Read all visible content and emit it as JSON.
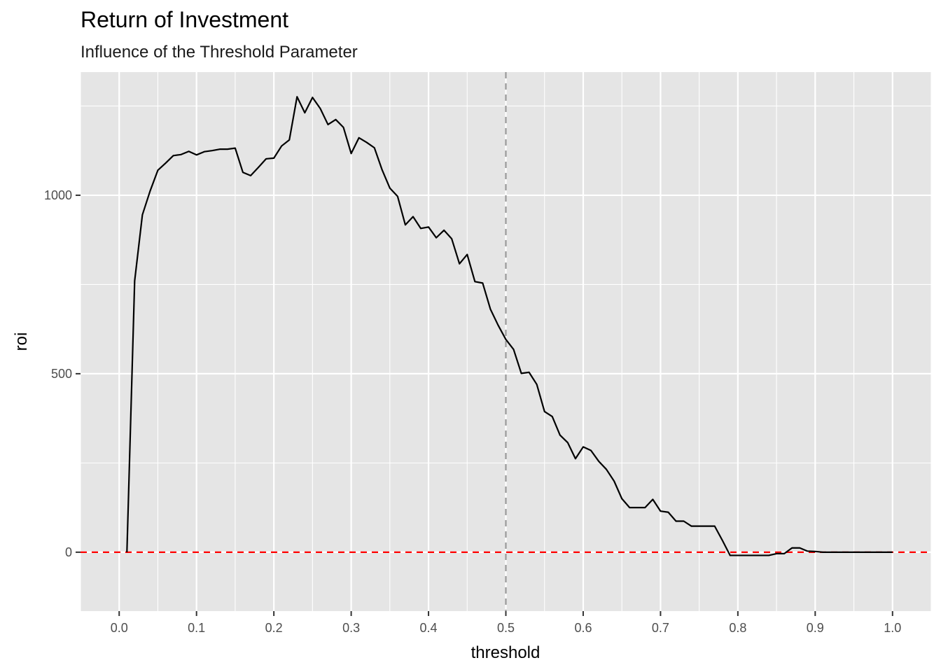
{
  "chart_data": {
    "type": "line",
    "title": "Return of Investment",
    "subtitle": "Influence of the Threshold Parameter",
    "xlabel": "threshold",
    "ylabel": "roi",
    "xlim": [
      -0.05,
      1.05
    ],
    "ylim": [
      -165,
      1345
    ],
    "x_ticks": [
      0.0,
      0.1,
      0.2,
      0.3,
      0.4,
      0.5,
      0.6,
      0.7,
      0.8,
      0.9,
      1.0
    ],
    "x_tick_labels": [
      "0.0",
      "0.1",
      "0.2",
      "0.3",
      "0.4",
      "0.5",
      "0.6",
      "0.7",
      "0.8",
      "0.9",
      "1.0"
    ],
    "y_ticks": [
      0,
      500,
      1000
    ],
    "y_tick_labels": [
      "0",
      "500",
      "1000"
    ],
    "grid": true,
    "background": "#e5e5e5",
    "series": [
      {
        "color": "#000000",
        "x": [
          0.01,
          0.02,
          0.03,
          0.04,
          0.05,
          0.06,
          0.07,
          0.08,
          0.09,
          0.1,
          0.11,
          0.12,
          0.13,
          0.14,
          0.15,
          0.16,
          0.17,
          0.18,
          0.19,
          0.2,
          0.21,
          0.22,
          0.23,
          0.24,
          0.25,
          0.26,
          0.27,
          0.28,
          0.29,
          0.3,
          0.31,
          0.32,
          0.33,
          0.34,
          0.35,
          0.36,
          0.37,
          0.38,
          0.39,
          0.4,
          0.41,
          0.42,
          0.43,
          0.44,
          0.45,
          0.46,
          0.47,
          0.48,
          0.49,
          0.5,
          0.51,
          0.52,
          0.53,
          0.54,
          0.55,
          0.56,
          0.57,
          0.58,
          0.59,
          0.6,
          0.61,
          0.62,
          0.63,
          0.64,
          0.65,
          0.66,
          0.67,
          0.68,
          0.69,
          0.7,
          0.71,
          0.72,
          0.73,
          0.74,
          0.75,
          0.76,
          0.77,
          0.78,
          0.79,
          0.8,
          0.81,
          0.82,
          0.83,
          0.84,
          0.85,
          0.86,
          0.87,
          0.88,
          0.89,
          0.9,
          0.91,
          0.92,
          0.93,
          0.94,
          0.95,
          0.96,
          0.97,
          0.98,
          0.99,
          1.0
        ],
        "y": [
          0,
          760,
          945,
          1012,
          1070,
          1090,
          1111,
          1114,
          1123,
          1113,
          1122,
          1125,
          1129,
          1129,
          1132,
          1064,
          1055,
          1078,
          1102,
          1104,
          1138,
          1155,
          1276,
          1231,
          1274,
          1243,
          1198,
          1212,
          1190,
          1117,
          1161,
          1148,
          1133,
          1071,
          1020,
          997,
          917,
          940,
          907,
          911,
          881,
          902,
          878,
          808,
          834,
          758,
          754,
          681,
          636,
          596,
          568,
          501,
          504,
          470,
          394,
          380,
          328,
          307,
          262,
          295,
          285,
          255,
          232,
          199,
          150,
          125,
          125,
          125,
          148,
          115,
          112,
          87,
          87,
          73,
          73,
          73,
          73,
          33,
          -9,
          -9,
          -9,
          -9,
          -9,
          -9,
          -4,
          -4,
          12,
          12,
          3,
          2,
          0,
          0,
          0,
          0,
          0,
          0,
          0,
          0,
          0,
          0
        ]
      }
    ],
    "reference_lines": [
      {
        "orientation": "horizontal",
        "value": 0,
        "color": "#ff0000",
        "style": "dashed"
      },
      {
        "orientation": "vertical",
        "value": 0.5,
        "color": "#999999",
        "style": "dashed"
      }
    ]
  }
}
